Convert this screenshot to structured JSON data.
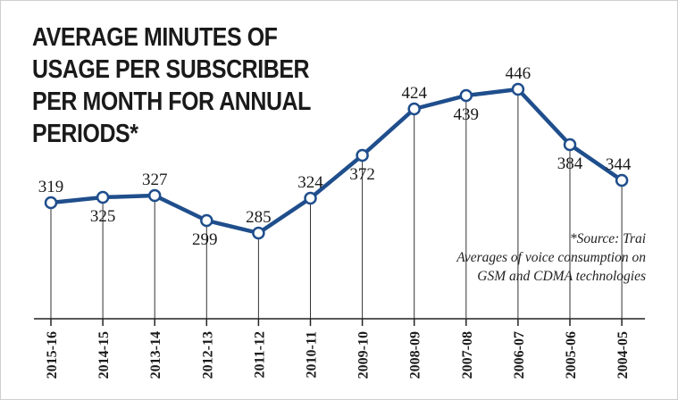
{
  "chart_data": {
    "type": "line",
    "title": "AVERAGE MINUTES OF USAGE PER SUBSCRIBER PER MONTH FOR ANNUAL PERIODS*",
    "x": [
      "2015-16",
      "2014-15",
      "2013-14",
      "2012-13",
      "2011-12",
      "2010-11",
      "2009-10",
      "2008-09",
      "2007-08",
      "2006-07",
      "2005-06",
      "2004-05"
    ],
    "series": [
      {
        "values": [
          319,
          325,
          327,
          299,
          285,
          324,
          372,
          424,
          439,
          446,
          384,
          344
        ]
      }
    ],
    "ylim": [
      240,
      480
    ],
    "grid": false,
    "line_color": "#1f4e8c",
    "notes": [
      "*Source: Trai",
      "Averages of voice consumption on",
      "GSM and CDMA technologies"
    ]
  }
}
